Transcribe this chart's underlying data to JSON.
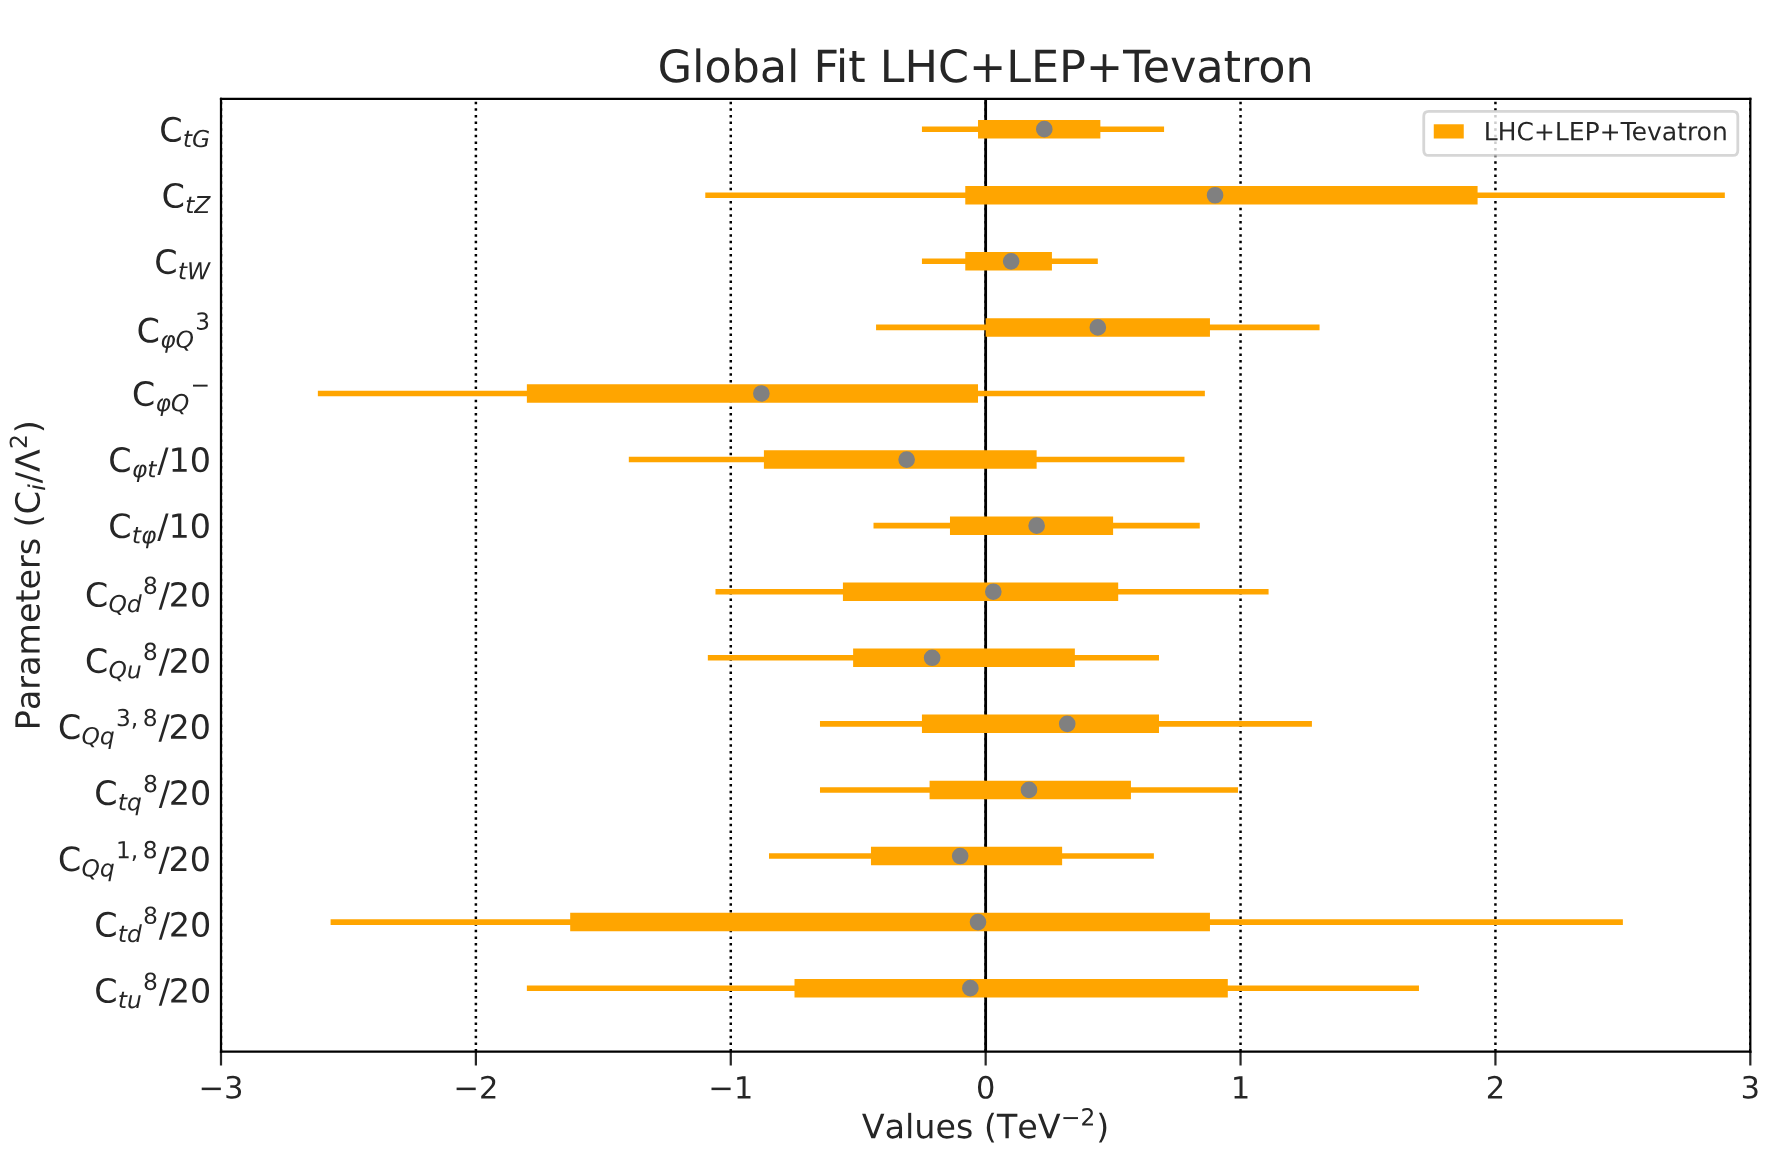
{
  "chart_data": {
    "type": "box",
    "orientation": "horizontal",
    "title": "Global Fit LHC+LEP+Tevatron",
    "xlabel": "Values (TeV$^{−2}$)",
    "ylabel": "Parameters (C$_{i}$/Λ$^{2}$)",
    "categories": [
      "C$_{tG}$",
      "C$_{tZ}$",
      "C$_{tW}$",
      "C$_{φQ}$$^{3}$",
      "C$_{φQ}$$^{−}$",
      "C$_{φt}$/10",
      "C$_{tφ}$/10",
      "C$_{Qd}$$^{8}$/20",
      "C$_{Qu}$$^{8}$/20",
      "C$_{Qq}$$^{3,8}$/20",
      "C$_{tq}$$^{8}$/20",
      "C$_{Qq}$$^{1,8}$/20",
      "C$_{td}$$^{8}$/20",
      "C$_{tu}$$^{8}$/20"
    ],
    "series": [
      {
        "name": "LHC+LEP+Tevatron",
        "color": "#ffa500",
        "boxes": [
          {
            "low": -0.25,
            "q1": -0.03,
            "median": 0.23,
            "q3": 0.45,
            "high": 0.7
          },
          {
            "low": -1.1,
            "q1": -0.08,
            "median": 0.9,
            "q3": 1.93,
            "high": 2.9
          },
          {
            "low": -0.25,
            "q1": -0.08,
            "median": 0.1,
            "q3": 0.26,
            "high": 0.44
          },
          {
            "low": -0.43,
            "q1": 0.0,
            "median": 0.44,
            "q3": 0.88,
            "high": 1.31
          },
          {
            "low": -2.62,
            "q1": -1.8,
            "median": -0.88,
            "q3": -0.03,
            "high": 0.86
          },
          {
            "low": -1.4,
            "q1": -0.87,
            "median": -0.31,
            "q3": 0.2,
            "high": 0.78
          },
          {
            "low": -0.44,
            "q1": -0.14,
            "median": 0.2,
            "q3": 0.5,
            "high": 0.84
          },
          {
            "low": -1.06,
            "q1": -0.56,
            "median": 0.03,
            "q3": 0.52,
            "high": 1.11
          },
          {
            "low": -1.09,
            "q1": -0.52,
            "median": -0.21,
            "q3": 0.35,
            "high": 0.68
          },
          {
            "low": -0.65,
            "q1": -0.25,
            "median": 0.32,
            "q3": 0.68,
            "high": 1.28
          },
          {
            "low": -0.65,
            "q1": -0.22,
            "median": 0.17,
            "q3": 0.57,
            "high": 0.99
          },
          {
            "low": -0.85,
            "q1": -0.45,
            "median": -0.1,
            "q3": 0.3,
            "high": 0.66
          },
          {
            "low": -2.57,
            "q1": -1.63,
            "median": -0.03,
            "q3": 0.88,
            "high": 2.5
          },
          {
            "low": -1.8,
            "q1": -0.75,
            "median": -0.06,
            "q3": 0.95,
            "high": 1.7
          }
        ]
      }
    ],
    "xlim": [
      -3,
      3
    ],
    "xticks": [
      -3,
      -2,
      -1,
      0,
      1,
      2,
      3
    ],
    "ref_lines": [
      {
        "axis": "x",
        "value": 0,
        "color": "#000000"
      }
    ],
    "grid": "x",
    "legend": "top right",
    "marker": "circle"
  }
}
